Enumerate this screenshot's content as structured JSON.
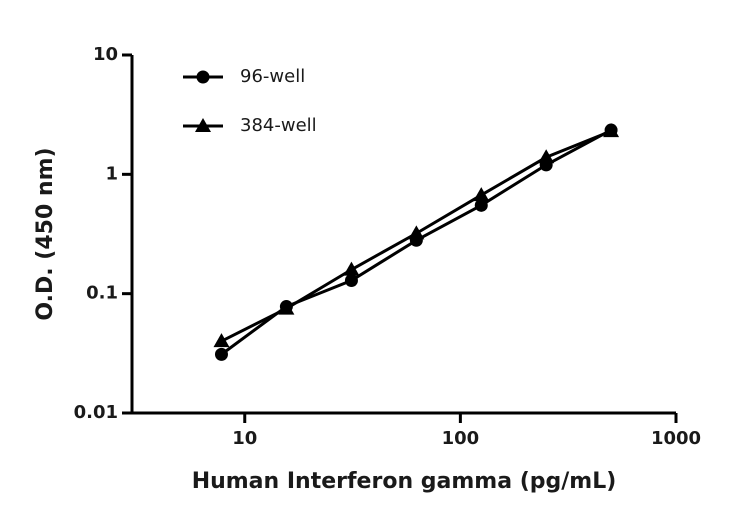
{
  "chart_data": {
    "type": "line",
    "x_label": "Human Interferon gamma (pg/mL)",
    "y_label": "O.D. (450 nm)",
    "x": [
      7.8,
      15.6,
      31.25,
      62.5,
      125,
      250,
      500
    ],
    "series": [
      {
        "name": "96-well",
        "color": "#000000",
        "marker": "circle",
        "values": [
          0.031,
          0.078,
          0.129,
          0.28,
          0.55,
          1.2,
          2.35
        ]
      },
      {
        "name": "384-well",
        "color": "#000000",
        "marker": "triangle",
        "values": [
          0.04,
          0.075,
          0.159,
          0.32,
          0.67,
          1.39,
          2.3
        ]
      }
    ],
    "x_log": true,
    "y_log": true,
    "xlim": [
      3,
      1000
    ],
    "xticks": [
      10,
      100,
      1000
    ],
    "ylim": [
      0.01,
      10
    ],
    "yticks": [
      0.01,
      0.1,
      1,
      10
    ],
    "legend": "top-left"
  }
}
